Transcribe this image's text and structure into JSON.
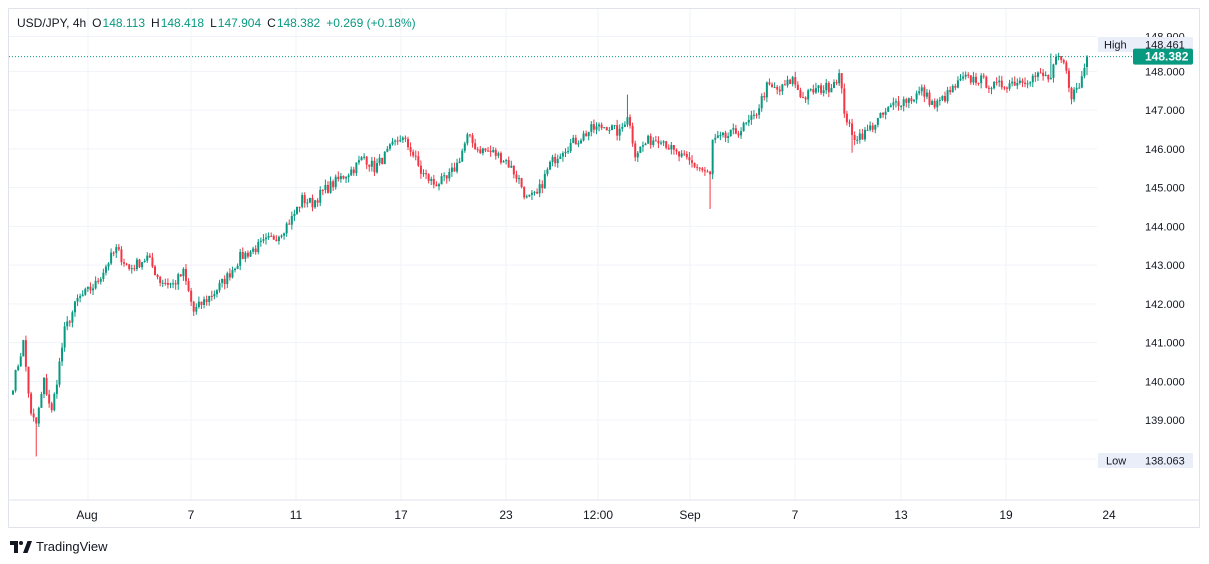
{
  "legend": {
    "symbol": "USD/JPY",
    "interval": "4h",
    "o_label": "O",
    "o_value": "148.113",
    "h_label": "H",
    "h_value": "148.418",
    "l_label": "L",
    "l_value": "147.904",
    "c_label": "C",
    "c_value": "148.382",
    "change": "+0.269 (+0.18%)"
  },
  "price_axis": {
    "ticks": [
      "148.000",
      "147.000",
      "146.000",
      "145.000",
      "144.000",
      "143.000",
      "142.000",
      "141.000",
      "140.000",
      "139.000"
    ],
    "high_label": "High",
    "high_value": "148.461",
    "low_label": "Low",
    "low_value": "138.063",
    "last_value": "148.382"
  },
  "time_axis": {
    "labels": [
      "Aug",
      "7",
      "11",
      "17",
      "23",
      "12:00",
      "Sep",
      "7",
      "13",
      "19",
      "24"
    ]
  },
  "brand": {
    "name": "TradingView"
  },
  "colors": {
    "up": "#089981",
    "down": "#f23645",
    "grid": "#f0f3fa",
    "last_price_bg": "#089981"
  },
  "chart_data": {
    "type": "candlestick",
    "symbol": "USD/JPY",
    "interval": "4h",
    "y_min": 138.063,
    "y_max": 148.461,
    "last": 148.382,
    "path": [
      {
        "t": 0,
        "p": 139.9
      },
      {
        "t": 4,
        "p": 141.0
      },
      {
        "t": 7,
        "p": 139.1
      },
      {
        "t": 9,
        "p": 138.9
      },
      {
        "t": 12,
        "p": 140.0
      },
      {
        "t": 15,
        "p": 139.2
      },
      {
        "t": 20,
        "p": 141.3
      },
      {
        "t": 25,
        "p": 142.1
      },
      {
        "t": 32,
        "p": 142.5
      },
      {
        "t": 37,
        "p": 143.1
      },
      {
        "t": 40,
        "p": 143.4
      },
      {
        "t": 45,
        "p": 142.9
      },
      {
        "t": 52,
        "p": 143.2
      },
      {
        "t": 57,
        "p": 142.6
      },
      {
        "t": 62,
        "p": 142.5
      },
      {
        "t": 66,
        "p": 142.8
      },
      {
        "t": 70,
        "p": 141.8
      },
      {
        "t": 73,
        "p": 142.0
      },
      {
        "t": 78,
        "p": 142.3
      },
      {
        "t": 83,
        "p": 142.7
      },
      {
        "t": 88,
        "p": 143.2
      },
      {
        "t": 93,
        "p": 143.4
      },
      {
        "t": 98,
        "p": 143.6
      },
      {
        "t": 103,
        "p": 143.8
      },
      {
        "t": 108,
        "p": 144.2
      },
      {
        "t": 112,
        "p": 144.7
      },
      {
        "t": 116,
        "p": 144.6
      },
      {
        "t": 120,
        "p": 144.9
      },
      {
        "t": 126,
        "p": 145.2
      },
      {
        "t": 132,
        "p": 145.5
      },
      {
        "t": 136,
        "p": 145.8
      },
      {
        "t": 140,
        "p": 145.5
      },
      {
        "t": 145,
        "p": 145.9
      },
      {
        "t": 150,
        "p": 146.3
      },
      {
        "t": 154,
        "p": 146.0
      },
      {
        "t": 158,
        "p": 145.4
      },
      {
        "t": 163,
        "p": 145.1
      },
      {
        "t": 168,
        "p": 145.2
      },
      {
        "t": 172,
        "p": 145.6
      },
      {
        "t": 176,
        "p": 146.3
      },
      {
        "t": 180,
        "p": 146.0
      },
      {
        "t": 186,
        "p": 145.9
      },
      {
        "t": 191,
        "p": 145.7
      },
      {
        "t": 196,
        "p": 145.2
      },
      {
        "t": 199,
        "p": 144.7
      },
      {
        "t": 203,
        "p": 144.8
      },
      {
        "t": 208,
        "p": 145.6
      },
      {
        "t": 213,
        "p": 146.0
      },
      {
        "t": 218,
        "p": 146.2
      },
      {
        "t": 224,
        "p": 146.5
      },
      {
        "t": 230,
        "p": 146.6
      },
      {
        "t": 235,
        "p": 146.4
      },
      {
        "t": 238,
        "p": 146.9
      },
      {
        "t": 241,
        "p": 145.9
      },
      {
        "t": 246,
        "p": 146.2
      },
      {
        "t": 251,
        "p": 146.3
      },
      {
        "t": 256,
        "p": 145.9
      },
      {
        "t": 261,
        "p": 145.7
      },
      {
        "t": 266,
        "p": 145.5
      },
      {
        "t": 270,
        "p": 145.3
      },
      {
        "t": 271,
        "p": 146.2
      },
      {
        "t": 276,
        "p": 146.3
      },
      {
        "t": 282,
        "p": 146.5
      },
      {
        "t": 287,
        "p": 146.8
      },
      {
        "t": 292,
        "p": 147.6
      },
      {
        "t": 297,
        "p": 147.5
      },
      {
        "t": 302,
        "p": 147.8
      },
      {
        "t": 306,
        "p": 147.3
      },
      {
        "t": 310,
        "p": 147.5
      },
      {
        "t": 316,
        "p": 147.6
      },
      {
        "t": 320,
        "p": 147.9
      },
      {
        "t": 322,
        "p": 147.0
      },
      {
        "t": 325,
        "p": 146.3
      },
      {
        "t": 330,
        "p": 146.4
      },
      {
        "t": 336,
        "p": 146.8
      },
      {
        "t": 342,
        "p": 147.2
      },
      {
        "t": 348,
        "p": 147.3
      },
      {
        "t": 352,
        "p": 147.5
      },
      {
        "t": 357,
        "p": 147.1
      },
      {
        "t": 362,
        "p": 147.4
      },
      {
        "t": 368,
        "p": 147.8
      },
      {
        "t": 374,
        "p": 147.8
      },
      {
        "t": 380,
        "p": 147.6
      },
      {
        "t": 386,
        "p": 147.7
      },
      {
        "t": 392,
        "p": 147.8
      },
      {
        "t": 398,
        "p": 147.9
      },
      {
        "t": 402,
        "p": 147.8
      },
      {
        "t": 404,
        "p": 148.3
      },
      {
        "t": 407,
        "p": 148.2
      },
      {
        "t": 410,
        "p": 147.4
      },
      {
        "t": 413,
        "p": 147.6
      },
      {
        "t": 416,
        "p": 148.382
      }
    ]
  }
}
